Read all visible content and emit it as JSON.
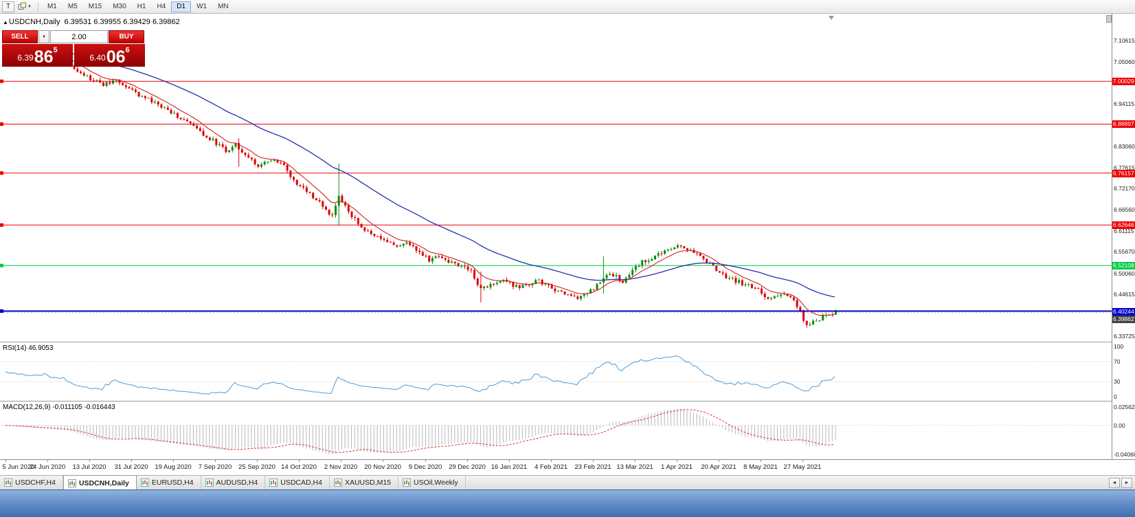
{
  "toolbar": {
    "tool_button_label": "T",
    "timeframes": [
      {
        "label": "M1"
      },
      {
        "label": "M5"
      },
      {
        "label": "M15"
      },
      {
        "label": "M30"
      },
      {
        "label": "H1"
      },
      {
        "label": "H4"
      },
      {
        "label": "D1",
        "active": true
      },
      {
        "label": "W1"
      },
      {
        "label": "MN"
      }
    ]
  },
  "chart_header": {
    "symbol_title": "USDCNH,Daily",
    "ohlc": "6.39531 6.39955 6.39429 6.39862"
  },
  "trade_panel": {
    "sell_label": "SELL",
    "buy_label": "BUY",
    "volume": "2.00",
    "sell_price": {
      "prefix": "6.39",
      "big": "86",
      "sup": "5"
    },
    "buy_price": {
      "prefix": "6.40",
      "big": "06",
      "sup": "6"
    }
  },
  "indicator_labels": {
    "rsi": "RSI(14) 46.9053",
    "macd": "MACD(12,26,9) -0.011105 -0.016443"
  },
  "chart_data": {
    "type": "candlestick",
    "symbol": "USDCNH",
    "timeframe": "Daily",
    "open": 6.39531,
    "high": 6.39955,
    "low": 6.39429,
    "close": 6.39862,
    "bid_price": 6.39862,
    "candles_count": 258,
    "up_color": "#089008",
    "down_color": "#dd0000",
    "price_axis": {
      "top": 7.10615,
      "bottom": 6.33725,
      "plain_ticks": [
        7.10615,
        7.0506,
        6.94115,
        6.8306,
        6.77615,
        6.7217,
        6.6656,
        6.61115,
        6.5567,
        6.5006,
        6.44615,
        6.33725
      ]
    },
    "horizontal_lines": [
      {
        "price": 7.00029,
        "color": "#ee0000",
        "width": 1
      },
      {
        "price": 6.88897,
        "color": "#ee0000",
        "width": 1
      },
      {
        "price": 6.76157,
        "color": "#ee0000",
        "width": 1
      },
      {
        "price": 6.62646,
        "color": "#ee0000",
        "width": 1
      },
      {
        "price": 6.52108,
        "color": "#00cc44",
        "width": 1
      },
      {
        "price": 6.40244,
        "color": "#0000cc",
        "width": 2
      }
    ],
    "moving_averages": [
      {
        "period": 10,
        "color": "#d02020"
      },
      {
        "period": 45,
        "color": "#2030b0"
      }
    ],
    "close_anchors": [
      [
        0,
        7.085
      ],
      [
        8,
        7.072
      ],
      [
        13,
        7.068
      ],
      [
        18,
        7.055
      ],
      [
        22,
        7.03
      ],
      [
        26,
        7.005
      ],
      [
        30,
        6.992
      ],
      [
        34,
        7.003
      ],
      [
        39,
        6.975
      ],
      [
        44,
        6.952
      ],
      [
        48,
        6.934
      ],
      [
        52,
        6.916
      ],
      [
        57,
        6.888
      ],
      [
        61,
        6.862
      ],
      [
        65,
        6.84
      ],
      [
        68,
        6.818
      ],
      [
        71,
        6.838
      ],
      [
        75,
        6.8
      ],
      [
        78,
        6.782
      ],
      [
        82,
        6.792
      ],
      [
        86,
        6.786
      ],
      [
        88,
        6.748
      ],
      [
        92,
        6.72
      ],
      [
        95,
        6.7
      ],
      [
        98,
        6.675
      ],
      [
        101,
        6.648
      ],
      [
        103,
        6.7
      ],
      [
        106,
        6.662
      ],
      [
        109,
        6.628
      ],
      [
        112,
        6.608
      ],
      [
        117,
        6.585
      ],
      [
        121,
        6.572
      ],
      [
        125,
        6.578
      ],
      [
        128,
        6.555
      ],
      [
        131,
        6.535
      ],
      [
        134,
        6.545
      ],
      [
        138,
        6.528
      ],
      [
        141,
        6.52
      ],
      [
        144,
        6.508
      ],
      [
        147,
        6.46
      ],
      [
        150,
        6.472
      ],
      [
        153,
        6.482
      ],
      [
        156,
        6.475
      ],
      [
        159,
        6.462
      ],
      [
        162,
        6.472
      ],
      [
        165,
        6.482
      ],
      [
        169,
        6.46
      ],
      [
        172,
        6.452
      ],
      [
        175,
        6.443
      ],
      [
        178,
        6.438
      ],
      [
        182,
        6.462
      ],
      [
        185,
        6.488
      ],
      [
        188,
        6.497
      ],
      [
        191,
        6.478
      ],
      [
        194,
        6.508
      ],
      [
        197,
        6.53
      ],
      [
        200,
        6.542
      ],
      [
        203,
        6.552
      ],
      [
        206,
        6.567
      ],
      [
        209,
        6.572
      ],
      [
        212,
        6.562
      ],
      [
        215,
        6.545
      ],
      [
        218,
        6.527
      ],
      [
        221,
        6.502
      ],
      [
        224,
        6.487
      ],
      [
        227,
        6.478
      ],
      [
        230,
        6.468
      ],
      [
        233,
        6.462
      ],
      [
        236,
        6.432
      ],
      [
        239,
        6.447
      ],
      [
        242,
        6.442
      ],
      [
        245,
        6.418
      ],
      [
        248,
        6.362
      ],
      [
        250,
        6.372
      ],
      [
        252,
        6.382
      ],
      [
        254,
        6.39
      ],
      [
        257,
        6.398
      ]
    ],
    "spikes": [
      [
        72,
        6.852,
        6.778
      ],
      [
        103,
        6.786,
        6.625
      ],
      [
        147,
        6.505,
        6.425
      ],
      [
        185,
        6.545,
        6.448
      ]
    ],
    "x_labels": [
      "5 Jun 2020",
      "24 Jun 2020",
      "13 Jul 2020",
      "31 Jul 2020",
      "19 Aug 2020",
      "7 Sep 2020",
      "25 Sep 2020",
      "14 Oct 2020",
      "2 Nov 2020",
      "20 Nov 2020",
      "9 Dec 2020",
      "29 Dec 2020",
      "16 Jan 2021",
      "4 Feb 2021",
      "23 Feb 2021",
      "13 Mar 2021",
      "1 Apr 2021",
      "20 Apr 2021",
      "8 May 2021",
      "27 May 2021"
    ],
    "rsi": {
      "period": 14,
      "current": 46.9053,
      "ticks": [
        100,
        70,
        30,
        0
      ],
      "levels": [
        70,
        30
      ],
      "color": "#4f9bd5"
    },
    "macd": {
      "fast": 12,
      "slow": 26,
      "signal": 9,
      "current": -0.011105,
      "signal_current": -0.016443,
      "ticks": [
        "0.025623",
        "0.00",
        "-0.040687"
      ],
      "range": [
        -0.040687,
        0.025623
      ],
      "histogram_color": "#b8b8b8",
      "signal_color": "#e03030"
    }
  },
  "tabs": [
    {
      "label": "USDCHF,H4"
    },
    {
      "label": "USDCNH,Daily",
      "active": true
    },
    {
      "label": "EURUSD,H4"
    },
    {
      "label": "AUDUSD,H4"
    },
    {
      "label": "USDCAD,H4"
    },
    {
      "label": "XAUUSD,M15"
    },
    {
      "label": "USOil,Weekly"
    }
  ]
}
